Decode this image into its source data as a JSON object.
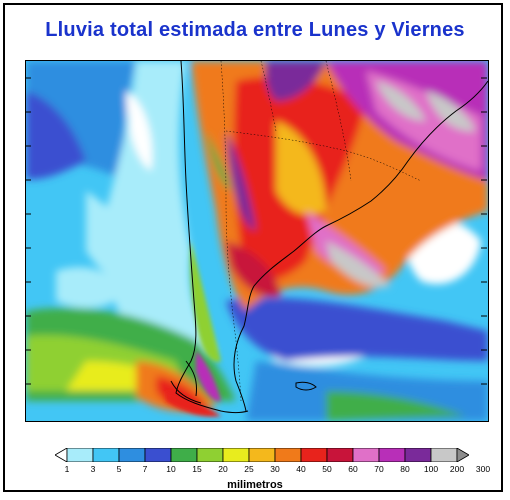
{
  "title": "Lluvia total estimada entre Lunes y Viernes",
  "legend": {
    "units": "milimetros",
    "levels": [
      "1",
      "3",
      "5",
      "7",
      "10",
      "15",
      "20",
      "25",
      "30",
      "40",
      "50",
      "60",
      "70",
      "80",
      "100",
      "200",
      "300"
    ],
    "colors": [
      "#ffffff",
      "#a8ecfa",
      "#42c6f5",
      "#2e8ee0",
      "#3a4fd0",
      "#3fae49",
      "#8fd032",
      "#e8ec1e",
      "#f4b81c",
      "#f07a1a",
      "#e8231c",
      "#c8143a",
      "#e070c8",
      "#b82fb8",
      "#7a2a9a",
      "#c8c8c8",
      "#8c8c8c"
    ]
  }
}
